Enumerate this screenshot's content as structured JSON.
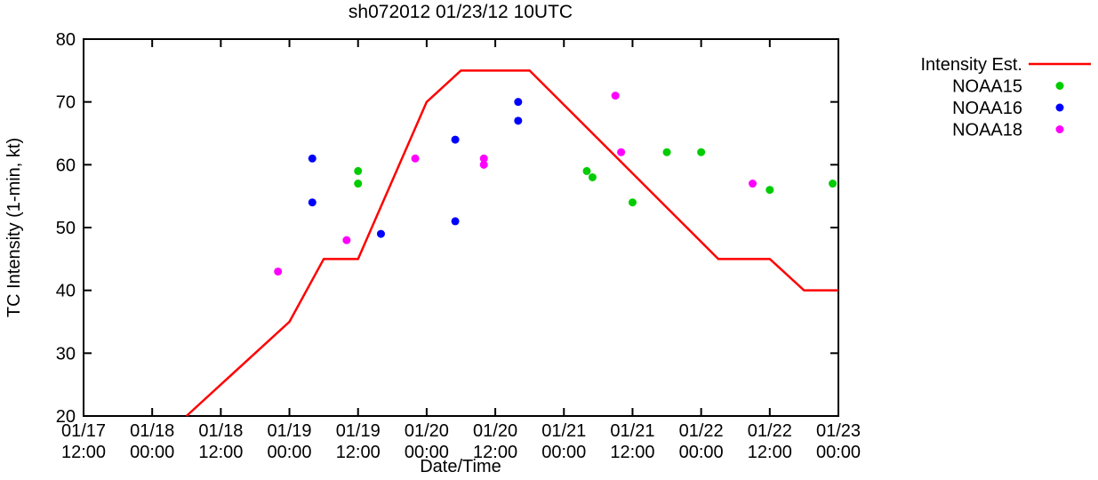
{
  "colors": {
    "background": "#ffffff",
    "axis": "#000000",
    "intensity_line": "#ff0000",
    "noaa15": "#00cc00",
    "noaa16": "#0000ff",
    "noaa18": "#ff00ff"
  },
  "chart_data": {
    "type": "line",
    "title": "sh072012 01/23/12 10UTC",
    "xlabel": "Date/Time",
    "ylabel": "TC Intensity (1-min, kt)",
    "x_unit": "hours since 01/17 12:00",
    "xlim": [
      0,
      132
    ],
    "ylim": [
      20,
      80
    ],
    "grid": false,
    "legend_position": "outside-top-right",
    "yticks": [
      20,
      30,
      40,
      50,
      60,
      70,
      80
    ],
    "xticks": [
      {
        "t": 0,
        "date": "01/17",
        "time": "12:00"
      },
      {
        "t": 12,
        "date": "01/18",
        "time": "00:00"
      },
      {
        "t": 24,
        "date": "01/18",
        "time": "12:00"
      },
      {
        "t": 36,
        "date": "01/19",
        "time": "00:00"
      },
      {
        "t": 48,
        "date": "01/19",
        "time": "12:00"
      },
      {
        "t": 60,
        "date": "01/20",
        "time": "00:00"
      },
      {
        "t": 72,
        "date": "01/20",
        "time": "12:00"
      },
      {
        "t": 84,
        "date": "01/21",
        "time": "00:00"
      },
      {
        "t": 96,
        "date": "01/21",
        "time": "12:00"
      },
      {
        "t": 108,
        "date": "01/22",
        "time": "00:00"
      },
      {
        "t": 120,
        "date": "01/22",
        "time": "12:00"
      },
      {
        "t": 132,
        "date": "01/23",
        "time": "00:00"
      }
    ],
    "series": [
      {
        "name": "Intensity Est.",
        "style": "line",
        "color": "#ff0000",
        "points": [
          [
            18,
            20
          ],
          [
            36,
            35
          ],
          [
            42,
            45
          ],
          [
            48,
            45
          ],
          [
            60,
            70
          ],
          [
            66,
            75
          ],
          [
            78,
            75
          ],
          [
            111,
            45
          ],
          [
            120,
            45
          ],
          [
            126,
            40
          ],
          [
            132,
            40
          ]
        ]
      },
      {
        "name": "NOAA15",
        "style": "scatter",
        "color": "#00cc00",
        "points": [
          [
            48,
            59
          ],
          [
            48,
            57
          ],
          [
            88,
            59
          ],
          [
            89,
            58
          ],
          [
            96,
            54
          ],
          [
            102,
            62
          ],
          [
            108,
            62
          ],
          [
            120,
            56
          ],
          [
            131,
            57
          ]
        ]
      },
      {
        "name": "NOAA16",
        "style": "scatter",
        "color": "#0000ff",
        "points": [
          [
            40,
            61
          ],
          [
            40,
            54
          ],
          [
            52,
            49
          ],
          [
            65,
            64
          ],
          [
            65,
            51
          ],
          [
            76,
            70
          ],
          [
            76,
            67
          ]
        ]
      },
      {
        "name": "NOAA18",
        "style": "scatter",
        "color": "#ff00ff",
        "points": [
          [
            34,
            43
          ],
          [
            46,
            48
          ],
          [
            58,
            61
          ],
          [
            70,
            61
          ],
          [
            70,
            60
          ],
          [
            93,
            71
          ],
          [
            94,
            62
          ],
          [
            117,
            57
          ]
        ]
      }
    ]
  }
}
